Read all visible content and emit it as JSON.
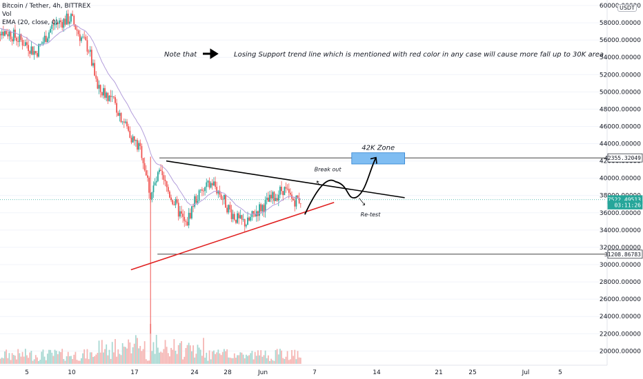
{
  "legend": {
    "title": "Bitcoin / Tether, 4h, BITTREX",
    "vol": "Vol",
    "ema": "EMA (20, close, 0)"
  },
  "currency_badge": "USDT",
  "colors": {
    "up": "#26a69a",
    "down": "#ef5350",
    "ema": "#b39ddb",
    "support": "#e02020",
    "resistance": "#000000",
    "zone": "#7fbdf2",
    "price_tag": "#26a69a"
  },
  "annotations": {
    "note_label": "Note that",
    "note_text": "Losing Support trend line which is mentioned with red color in any case will cause more fall up to 30K area",
    "zone_label": "42K Zone",
    "breakout_label": "Break out",
    "retest_label": "Re-test"
  },
  "chart_data": {
    "type": "candlestick",
    "title": "Bitcoin / Tether, 4h, BITTREX",
    "x_ticks": [
      "5",
      "10",
      "17",
      "24",
      "28",
      "Jun",
      "7",
      "14",
      "21",
      "25",
      "Jul",
      "5"
    ],
    "y_ticks": [
      "60000.00000",
      "58000.00000",
      "56000.00000",
      "54000.00000",
      "52000.00000",
      "50000.00000",
      "48000.00000",
      "46000.00000",
      "44000.00000",
      "42000.00000",
      "40000.00000",
      "38000.00000",
      "36000.00000",
      "34000.00000",
      "32000.00000",
      "30000.00000",
      "28000.00000",
      "26000.00000",
      "24000.00000",
      "22000.00000",
      "20000.00000"
    ],
    "ylim": [
      19000,
      61000
    ],
    "price_tags": [
      {
        "label": "42355.32049",
        "value": 42355.32
      },
      {
        "label": "37522.49513",
        "value": 37522.5
      },
      {
        "label": "03:11:26",
        "value": 36900
      },
      {
        "label": "31208.86783",
        "value": 31208.87
      }
    ],
    "horizontal_levels": [
      42355.32,
      31208.87
    ],
    "trend_lines": [
      {
        "name": "resistance",
        "from": [
          "May 20",
          42000
        ],
        "to": [
          "Jun 16",
          37750
        ]
      },
      {
        "name": "support",
        "from": [
          "May 16",
          29400
        ],
        "to": [
          "Jun 8",
          37200
        ]
      }
    ],
    "zone": {
      "from": [
        "Jun 10",
        42950
      ],
      "to": [
        "Jun 16",
        41650
      ]
    },
    "price_path": [
      [
        "May 1",
        57500
      ],
      [
        "May 3",
        56800
      ],
      [
        "May 5",
        55500
      ],
      [
        "May 6",
        54500
      ],
      [
        "May 8",
        57800
      ],
      [
        "May 10",
        58500
      ],
      [
        "May 11",
        56500
      ],
      [
        "May 12",
        55000
      ],
      [
        "May 13",
        50200
      ],
      [
        "May 14",
        49800
      ],
      [
        "May 15",
        48500
      ],
      [
        "May 16",
        46500
      ],
      [
        "May 17",
        44500
      ],
      [
        "May 18",
        43000
      ],
      [
        "May 19",
        38000
      ],
      [
        "May 20",
        40500
      ],
      [
        "May 21",
        38500
      ],
      [
        "May 22",
        36500
      ],
      [
        "May 23",
        34500
      ],
      [
        "May 24",
        37500
      ],
      [
        "May 25",
        38500
      ],
      [
        "May 26",
        39500
      ],
      [
        "May 27",
        38000
      ],
      [
        "May 28",
        36200
      ],
      [
        "May 29",
        35000
      ],
      [
        "May 30",
        34800
      ],
      [
        "May 31",
        36200
      ],
      [
        "Jun 1",
        37000
      ],
      [
        "Jun 2",
        37800
      ],
      [
        "Jun 3",
        38800
      ],
      [
        "Jun 4",
        37500
      ],
      [
        "Jun 5",
        37522
      ]
    ]
  }
}
